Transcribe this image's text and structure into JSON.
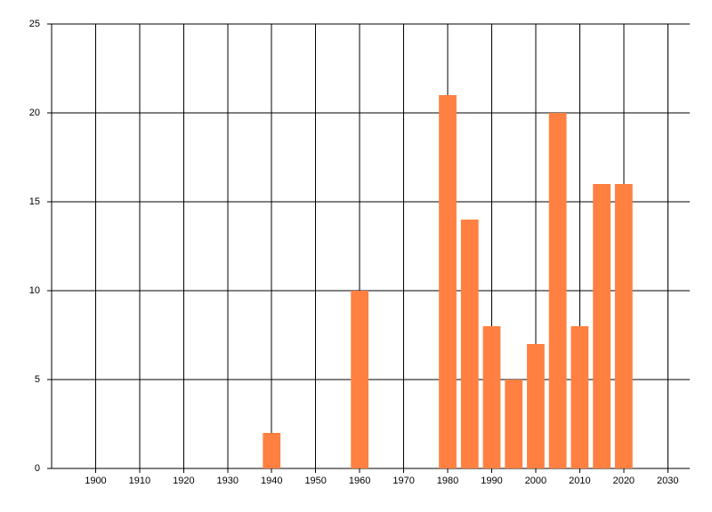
{
  "chart_data": {
    "type": "bar",
    "x": [
      1940,
      1960,
      1980,
      1985,
      1990,
      1995,
      2000,
      2005,
      2010,
      2015,
      2020
    ],
    "values": [
      2,
      10,
      21,
      14,
      8,
      5,
      7,
      20,
      8,
      16,
      16
    ],
    "color": "#ff8040",
    "xlim": [
      1890,
      2035
    ],
    "xticks": [
      1900,
      1910,
      1920,
      1930,
      1940,
      1950,
      1960,
      1970,
      1980,
      1990,
      2000,
      2010,
      2020,
      2030
    ],
    "ylim": [
      0,
      25
    ],
    "yticks": [
      0,
      5,
      10,
      15,
      20,
      25
    ],
    "grid": true
  }
}
